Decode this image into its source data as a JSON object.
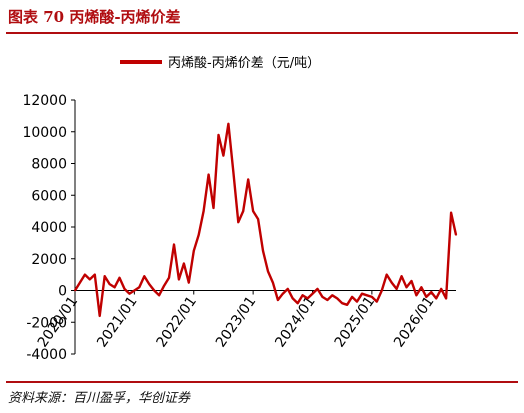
{
  "figure": {
    "title": "图表 70 丙烯酸-丙烯价差",
    "source": "资料来源：百川盈孚，华创证券"
  },
  "chart_data": {
    "type": "line",
    "title": "",
    "xlabel": "",
    "ylabel": "",
    "ylim": [
      -4000,
      12000
    ],
    "yticks": [
      -4000,
      -2000,
      0,
      2000,
      4000,
      6000,
      8000,
      10000,
      12000
    ],
    "xticks": [
      "2020/01",
      "2021/01",
      "2022/01",
      "2023/01",
      "2024/01",
      "2025/01",
      "2026/01"
    ],
    "grid": false,
    "legend": "top-center",
    "series": [
      {
        "name": "丙烯酸-丙烯价差（元/吨）",
        "color": "#c00000",
        "points": [
          [
            "2020/01",
            0
          ],
          [
            "2020/02",
            500
          ],
          [
            "2020/03",
            1000
          ],
          [
            "2020/04",
            700
          ],
          [
            "2020/05",
            1000
          ],
          [
            "2020/06",
            -1600
          ],
          [
            "2020/07",
            900
          ],
          [
            "2020/08",
            400
          ],
          [
            "2020/09",
            200
          ],
          [
            "2020/10",
            800
          ],
          [
            "2020/11",
            100
          ],
          [
            "2020/12",
            -200
          ],
          [
            "2021/01",
            0
          ],
          [
            "2021/02",
            200
          ],
          [
            "2021/03",
            900
          ],
          [
            "2021/04",
            400
          ],
          [
            "2021/05",
            0
          ],
          [
            "2021/06",
            -300
          ],
          [
            "2021/07",
            300
          ],
          [
            "2021/08",
            800
          ],
          [
            "2021/09",
            2900
          ],
          [
            "2021/10",
            700
          ],
          [
            "2021/11",
            1700
          ],
          [
            "2021/12",
            500
          ],
          [
            "2022/01",
            2500
          ],
          [
            "2022/02",
            3500
          ],
          [
            "2022/03",
            5000
          ],
          [
            "2022/04",
            7300
          ],
          [
            "2022/05",
            5200
          ],
          [
            "2022/06",
            9800
          ],
          [
            "2022/07",
            8500
          ],
          [
            "2022/08",
            10500
          ],
          [
            "2022/09",
            7500
          ],
          [
            "2022/10",
            4300
          ],
          [
            "2022/11",
            5000
          ],
          [
            "2022/12",
            7000
          ],
          [
            "2023/01",
            5000
          ],
          [
            "2023/02",
            4500
          ],
          [
            "2023/03",
            2500
          ],
          [
            "2023/04",
            1200
          ],
          [
            "2023/05",
            500
          ],
          [
            "2023/06",
            -600
          ],
          [
            "2023/07",
            -200
          ],
          [
            "2023/08",
            100
          ],
          [
            "2023/09",
            -500
          ],
          [
            "2023/10",
            -800
          ],
          [
            "2023/11",
            -300
          ],
          [
            "2023/12",
            -500
          ],
          [
            "2024/01",
            -200
          ],
          [
            "2024/02",
            100
          ],
          [
            "2024/03",
            -400
          ],
          [
            "2024/04",
            -600
          ],
          [
            "2024/05",
            -300
          ],
          [
            "2024/06",
            -500
          ],
          [
            "2024/07",
            -800
          ],
          [
            "2024/08",
            -900
          ],
          [
            "2024/09",
            -400
          ],
          [
            "2024/10",
            -700
          ],
          [
            "2024/11",
            -200
          ],
          [
            "2024/12",
            -300
          ],
          [
            "2025/01",
            -400
          ],
          [
            "2025/02",
            -700
          ],
          [
            "2025/03",
            0
          ],
          [
            "2025/04",
            1000
          ],
          [
            "2025/05",
            500
          ],
          [
            "2025/06",
            100
          ],
          [
            "2025/07",
            900
          ],
          [
            "2025/08",
            200
          ],
          [
            "2025/09",
            600
          ],
          [
            "2025/10",
            -300
          ],
          [
            "2025/11",
            200
          ],
          [
            "2025/12",
            -400
          ],
          [
            "2026/01",
            -100
          ],
          [
            "2026/02",
            -500
          ],
          [
            "2026/03",
            100
          ],
          [
            "2026/04",
            -500
          ],
          [
            "2026/05",
            4900
          ],
          [
            "2026/06",
            3500
          ]
        ]
      }
    ]
  }
}
